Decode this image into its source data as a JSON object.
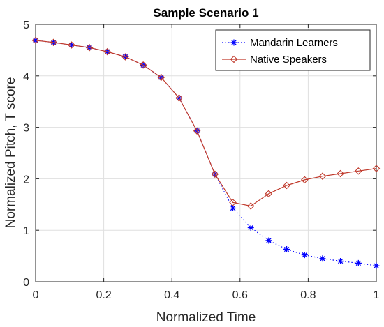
{
  "chart_data": {
    "type": "line",
    "title": "Sample Scenario 1",
    "xlabel": "Normalized Time",
    "ylabel": "Normalized Pitch, T score",
    "xlim": [
      0,
      1
    ],
    "ylim": [
      0,
      5
    ],
    "xticks": [
      0,
      0.2,
      0.4,
      0.6,
      0.8,
      1
    ],
    "xtick_labels": [
      "0",
      "0.2",
      "0.4",
      "0.6",
      "0.8",
      "1"
    ],
    "yticks": [
      0,
      1,
      2,
      3,
      4,
      5
    ],
    "ytick_labels": [
      "0",
      "1",
      "2",
      "3",
      "4",
      "5"
    ],
    "grid": true,
    "legend_position": "top-right",
    "x": [
      0,
      0.0526,
      0.1053,
      0.1579,
      0.2105,
      0.2632,
      0.3158,
      0.3684,
      0.4211,
      0.4737,
      0.5263,
      0.5789,
      0.6316,
      0.6842,
      0.7368,
      0.7895,
      0.8421,
      0.8947,
      0.9474,
      1
    ],
    "series": [
      {
        "name": "Mandarin Learners",
        "color": "#0000ff",
        "line_style": "dotted",
        "marker": "asterisk",
        "values": [
          4.69,
          4.65,
          4.6,
          4.55,
          4.47,
          4.37,
          4.21,
          3.97,
          3.57,
          2.93,
          2.09,
          1.43,
          1.05,
          0.8,
          0.63,
          0.52,
          0.45,
          0.4,
          0.36,
          0.31
        ]
      },
      {
        "name": "Native Speakers",
        "color": "#c0392b",
        "line_style": "solid",
        "marker": "diamond",
        "values": [
          4.69,
          4.65,
          4.6,
          4.55,
          4.47,
          4.37,
          4.21,
          3.97,
          3.57,
          2.93,
          2.09,
          1.54,
          1.47,
          1.71,
          1.87,
          1.98,
          2.05,
          2.1,
          2.15,
          2.2
        ]
      }
    ]
  }
}
